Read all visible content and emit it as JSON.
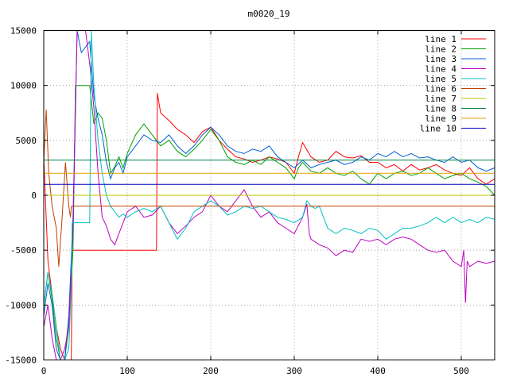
{
  "chart_data": {
    "type": "line",
    "title": "m0020_19",
    "xlabel": "",
    "ylabel": "",
    "xlim": [
      0,
      540
    ],
    "ylim": [
      -15000,
      15000
    ],
    "xticks": [
      0,
      100,
      200,
      300,
      400,
      500
    ],
    "yticks": [
      -15000,
      -10000,
      -5000,
      0,
      5000,
      10000,
      15000
    ],
    "xtick_labels": [
      "0",
      "100",
      "200",
      "300",
      "400",
      "500"
    ],
    "ytick_labels": [
      "-15000",
      "-10000",
      "-5000",
      "0",
      "5000",
      "10000",
      "15000"
    ],
    "grid": true,
    "legend_position": "top-right",
    "series": [
      {
        "name": "line 1",
        "color": "#ff0000",
        "x": [
          0,
          5,
          10,
          15,
          20,
          25,
          30,
          33,
          34,
          135,
          136,
          140,
          150,
          160,
          170,
          180,
          190,
          200,
          210,
          220,
          230,
          240,
          250,
          260,
          270,
          280,
          290,
          300,
          305,
          310,
          320,
          330,
          340,
          350,
          360,
          370,
          380,
          390,
          400,
          410,
          420,
          430,
          440,
          450,
          460,
          470,
          480,
          490,
          500,
          510,
          520,
          530,
          540
        ],
        "y": [
          3500,
          -6000,
          -9000,
          -12000,
          -14000,
          -15000,
          -15000,
          -15000,
          -5000,
          -5000,
          9300,
          7500,
          6800,
          6000,
          5500,
          4800,
          5800,
          6200,
          5000,
          4200,
          3500,
          3300,
          3000,
          3200,
          3500,
          3300,
          3000,
          2000,
          3500,
          4800,
          3500,
          3000,
          3200,
          4000,
          3500,
          3400,
          3600,
          3000,
          3000,
          2500,
          2800,
          2200,
          2800,
          2300,
          2500,
          2800,
          2300,
          2000,
          1800,
          2500,
          1500,
          1000,
          1500
        ]
      },
      {
        "name": "line 2",
        "color": "#00a000",
        "x": [
          0,
          5,
          10,
          15,
          20,
          25,
          30,
          35,
          38,
          45,
          55,
          60,
          65,
          70,
          75,
          80,
          85,
          90,
          95,
          100,
          110,
          120,
          130,
          140,
          150,
          160,
          170,
          180,
          190,
          200,
          210,
          220,
          230,
          240,
          250,
          260,
          270,
          280,
          290,
          300,
          305,
          310,
          320,
          330,
          340,
          350,
          360,
          370,
          380,
          390,
          400,
          410,
          420,
          430,
          440,
          450,
          460,
          470,
          480,
          490,
          500,
          510,
          520,
          530,
          540
        ],
        "y": [
          -10000,
          -7000,
          -9500,
          -13000,
          -15000,
          -15000,
          -12000,
          -5000,
          10000,
          10000,
          10000,
          6500,
          7500,
          7000,
          5000,
          2000,
          2600,
          3500,
          2500,
          3800,
          5500,
          6500,
          5500,
          4500,
          5000,
          4000,
          3500,
          4200,
          5000,
          6000,
          5000,
          3500,
          3000,
          2800,
          3200,
          2800,
          3500,
          3000,
          2500,
          1500,
          2500,
          3000,
          2200,
          2000,
          2500,
          2000,
          1800,
          2200,
          1500,
          1000,
          2000,
          1500,
          2000,
          2200,
          1800,
          2000,
          2500,
          2000,
          1500,
          1800,
          2000,
          1500,
          1200,
          800,
          0
        ]
      },
      {
        "name": "line 3",
        "color": "#0060d0",
        "x": [
          0,
          5,
          10,
          15,
          20,
          25,
          30,
          35,
          40,
          45,
          55,
          60,
          65,
          70,
          75,
          80,
          85,
          90,
          95,
          100,
          110,
          120,
          130,
          140,
          150,
          160,
          170,
          180,
          190,
          200,
          210,
          220,
          230,
          240,
          250,
          260,
          270,
          280,
          290,
          300,
          310,
          320,
          330,
          340,
          350,
          360,
          370,
          380,
          390,
          400,
          410,
          420,
          430,
          440,
          450,
          460,
          470,
          480,
          490,
          500,
          510,
          520,
          530,
          540
        ],
        "y": [
          -11000,
          -8000,
          -10000,
          -14000,
          -15000,
          -15000,
          -11000,
          -2000,
          15000,
          13000,
          14000,
          9000,
          7000,
          5500,
          3000,
          1500,
          2500,
          3000,
          2000,
          3500,
          4500,
          5500,
          5000,
          4800,
          5500,
          4500,
          3800,
          4500,
          5500,
          6200,
          5500,
          4500,
          4000,
          3800,
          4200,
          4000,
          4500,
          3500,
          3000,
          2500,
          3200,
          2500,
          2800,
          3000,
          3200,
          2800,
          3000,
          3500,
          3200,
          3800,
          3500,
          4000,
          3500,
          3800,
          3400,
          3500,
          3200,
          3000,
          3500,
          3000,
          3200,
          2500,
          2200,
          2500
        ]
      },
      {
        "name": "line 4",
        "color": "#c000c0",
        "x": [
          0,
          5,
          10,
          15,
          20,
          25,
          30,
          35,
          40,
          45,
          50,
          55,
          60,
          65,
          70,
          75,
          80,
          85,
          90,
          95,
          100,
          110,
          120,
          130,
          140,
          150,
          160,
          170,
          180,
          190,
          200,
          210,
          220,
          230,
          240,
          250,
          260,
          270,
          280,
          290,
          300,
          310,
          315,
          318,
          320,
          330,
          340,
          350,
          360,
          370,
          380,
          390,
          400,
          410,
          420,
          430,
          440,
          450,
          460,
          470,
          480,
          490,
          500,
          503,
          505,
          507,
          510,
          520,
          530,
          540
        ],
        "y": [
          -12000,
          -10000,
          -13000,
          -15000,
          -15000,
          -14000,
          -12000,
          -3000,
          15000,
          15000,
          15000,
          12000,
          8000,
          2000,
          -2000,
          -2800,
          -4000,
          -4500,
          -3500,
          -2500,
          -1500,
          -1000,
          -2000,
          -1800,
          -1000,
          -2500,
          -3500,
          -2800,
          -2000,
          -1500,
          0,
          -1000,
          -1500,
          -500,
          500,
          -1000,
          -2000,
          -1500,
          -2500,
          -3000,
          -3500,
          -2000,
          -800,
          -3500,
          -4000,
          -4500,
          -4800,
          -5500,
          -5000,
          -5200,
          -4000,
          -4200,
          -4000,
          -4500,
          -4000,
          -3800,
          -4000,
          -4500,
          -5000,
          -5200,
          -5000,
          -6000,
          -6500,
          -5000,
          -9800,
          -6000,
          -6500,
          -6000,
          -6200,
          -6000
        ]
      },
      {
        "name": "line 5",
        "color": "#00c0c0",
        "x": [
          0,
          5,
          10,
          15,
          20,
          25,
          30,
          33,
          34,
          55,
          57,
          60,
          65,
          70,
          75,
          80,
          85,
          90,
          95,
          100,
          110,
          120,
          130,
          140,
          150,
          160,
          170,
          180,
          190,
          200,
          210,
          220,
          230,
          240,
          250,
          260,
          270,
          280,
          290,
          300,
          310,
          315,
          320,
          325,
          330,
          340,
          350,
          360,
          370,
          380,
          390,
          400,
          410,
          420,
          430,
          440,
          450,
          460,
          470,
          480,
          490,
          500,
          510,
          520,
          530,
          540
        ],
        "y": [
          -10000,
          -7000,
          -9000,
          -12000,
          -15000,
          -15000,
          -14000,
          -8000,
          -2500,
          -2500,
          15000,
          10000,
          5000,
          2000,
          0,
          -1000,
          -1500,
          -2000,
          -1700,
          -2000,
          -1500,
          -1200,
          -1500,
          -1000,
          -2500,
          -4000,
          -3000,
          -1500,
          -1000,
          -500,
          -1000,
          -1800,
          -1500,
          -1000,
          -1200,
          -1000,
          -1500,
          -2000,
          -2200,
          -2500,
          -2000,
          -500,
          -1000,
          -1200,
          -1000,
          -3000,
          -3500,
          -3000,
          -3200,
          -3500,
          -3000,
          -3200,
          -4000,
          -3500,
          -3000,
          -3000,
          -2800,
          -2500,
          -2000,
          -2500,
          -2000,
          -2500,
          -2200,
          -2500,
          -2000,
          -2200
        ]
      },
      {
        "name": "line 6",
        "color": "#c04000",
        "x": [
          0,
          3,
          6,
          10,
          15,
          18,
          22,
          26,
          30,
          32,
          33,
          34,
          540
        ],
        "y": [
          3000,
          7800,
          2000,
          -1000,
          -3000,
          -6500,
          -2000,
          3000,
          -1000,
          -2000,
          -1000,
          -1000,
          -1000
        ]
      },
      {
        "name": "line 7",
        "color": "#c0c000",
        "x": [
          0,
          540
        ],
        "y": [
          0,
          0
        ]
      },
      {
        "name": "line 8",
        "color": "#008040",
        "x": [
          0,
          540
        ],
        "y": [
          3200,
          3200
        ]
      },
      {
        "name": "line 9",
        "color": "#e0a000",
        "x": [
          0,
          540
        ],
        "y": [
          2000,
          2000
        ]
      },
      {
        "name": "line 10",
        "color": "#0000c0",
        "x": [
          0,
          540
        ],
        "y": [
          1000,
          1000
        ]
      }
    ]
  }
}
